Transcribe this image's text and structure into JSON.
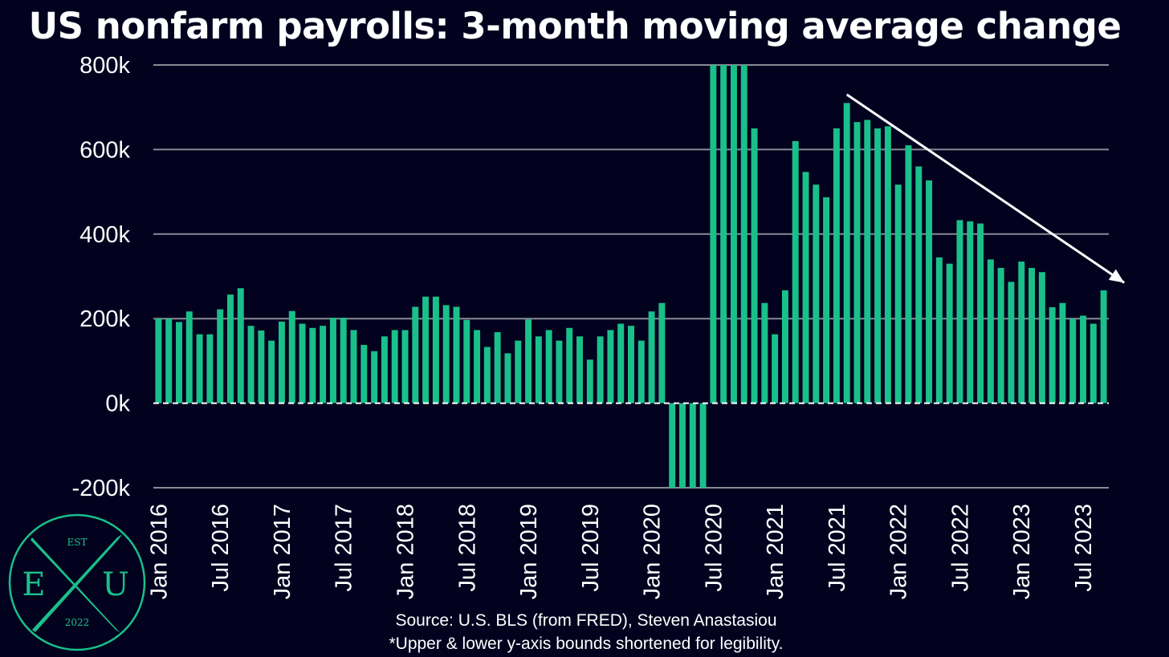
{
  "title": "US nonfarm payrolls: 3-month moving average change",
  "source_lines": [
    "Source: U.S. BLS (from FRED), Steven Anastasiou",
    "*Upper & lower y-axis bounds shortened for legibility."
  ],
  "logo": {
    "top": "EST",
    "left": "E",
    "right": "U",
    "bottom": "2022"
  },
  "colors": {
    "background": "#02021f",
    "bar": "#1ac08a",
    "grid": "#8a8a96",
    "text": "#ffffff",
    "logo": "#1ac08a"
  },
  "chart_data": {
    "type": "bar",
    "ylim": [
      -200000,
      800000
    ],
    "yticks": [
      {
        "value": -200000,
        "label": "-200k"
      },
      {
        "value": 0,
        "label": "0k"
      },
      {
        "value": 200000,
        "label": "200k"
      },
      {
        "value": 400000,
        "label": "400k"
      },
      {
        "value": 600000,
        "label": "600k"
      },
      {
        "value": 800000,
        "label": "800k"
      }
    ],
    "grid": true,
    "zero_line": "dashed",
    "x_tick_labels": [
      "Jan 2016",
      "Jul 2016",
      "Jan 2017",
      "Jul 2017",
      "Jan 2018",
      "Jul 2018",
      "Jan 2019",
      "Jul 2019",
      "Jan 2020",
      "Jul 2020",
      "Jan 2021",
      "Jul 2021",
      "Jan 2022",
      "Jul 2022",
      "Jan 2023",
      "Jul 2023"
    ],
    "x_tick_indices": [
      0,
      6,
      12,
      18,
      24,
      30,
      36,
      42,
      48,
      54,
      60,
      66,
      72,
      78,
      84,
      90
    ],
    "categories": [
      "2016-01",
      "2016-02",
      "2016-03",
      "2016-04",
      "2016-05",
      "2016-06",
      "2016-07",
      "2016-08",
      "2016-09",
      "2016-10",
      "2016-11",
      "2016-12",
      "2017-01",
      "2017-02",
      "2017-03",
      "2017-04",
      "2017-05",
      "2017-06",
      "2017-07",
      "2017-08",
      "2017-09",
      "2017-10",
      "2017-11",
      "2017-12",
      "2018-01",
      "2018-02",
      "2018-03",
      "2018-04",
      "2018-05",
      "2018-06",
      "2018-07",
      "2018-08",
      "2018-09",
      "2018-10",
      "2018-11",
      "2018-12",
      "2019-01",
      "2019-02",
      "2019-03",
      "2019-04",
      "2019-05",
      "2019-06",
      "2019-07",
      "2019-08",
      "2019-09",
      "2019-10",
      "2019-11",
      "2019-12",
      "2020-01",
      "2020-02",
      "2020-03",
      "2020-04",
      "2020-05",
      "2020-06",
      "2020-07",
      "2020-08",
      "2020-09",
      "2020-10",
      "2020-11",
      "2020-12",
      "2021-01",
      "2021-02",
      "2021-03",
      "2021-04",
      "2021-05",
      "2021-06",
      "2021-07",
      "2021-08",
      "2021-09",
      "2021-10",
      "2021-11",
      "2021-12",
      "2022-01",
      "2022-02",
      "2022-03",
      "2022-04",
      "2022-05",
      "2022-06",
      "2022-07",
      "2022-08",
      "2022-09",
      "2022-10",
      "2022-11",
      "2022-12",
      "2023-01",
      "2023-02",
      "2023-03",
      "2023-04",
      "2023-05",
      "2023-06",
      "2023-07",
      "2023-08",
      "2023-09"
    ],
    "values": [
      200000,
      200000,
      192000,
      217000,
      163000,
      163000,
      222000,
      257000,
      272000,
      183000,
      172000,
      148000,
      193000,
      218000,
      188000,
      178000,
      183000,
      202000,
      202000,
      173000,
      138000,
      123000,
      158000,
      173000,
      173000,
      228000,
      252000,
      252000,
      232000,
      228000,
      197000,
      173000,
      133000,
      168000,
      118000,
      148000,
      198000,
      158000,
      173000,
      148000,
      178000,
      158000,
      103000,
      158000,
      173000,
      188000,
      183000,
      148000,
      217000,
      237000,
      -200000,
      -200000,
      -200000,
      -200000,
      800000,
      800000,
      800000,
      800000,
      650000,
      237000,
      163000,
      267000,
      620000,
      547000,
      517000,
      487000,
      650000,
      710000,
      665000,
      670000,
      650000,
      655000,
      517000,
      610000,
      560000,
      527000,
      345000,
      330000,
      433000,
      430000,
      425000,
      340000,
      320000,
      287000,
      335000,
      320000,
      310000,
      227000,
      237000,
      200000,
      207000,
      188000,
      267000
    ],
    "annotations": [
      {
        "type": "arrow",
        "from_index": 67.5,
        "from_value": 730000,
        "to_index": 94.5,
        "to_value": 285000,
        "color": "#ffffff"
      }
    ]
  }
}
